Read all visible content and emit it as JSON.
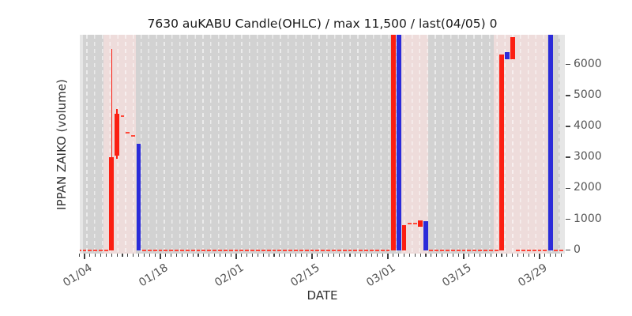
{
  "title_color": "#1a1a1a",
  "axis_color": "#555555",
  "chart_data": {
    "type": "candlestick",
    "title": "7630 auKABU Candle(OHLC) / max 11,500 / last(04/05) 0",
    "xlabel": "DATE",
    "ylabel": "IPPAN ZAIKO (volume)",
    "y_ticks": [
      0,
      1000,
      2000,
      3000,
      4000,
      5000,
      6000
    ],
    "x_tick_dates": [
      "01/04",
      "01/18",
      "02/01",
      "02/15",
      "03/01",
      "03/15",
      "03/29"
    ],
    "x_start": "01/03",
    "x_end": "04/02",
    "ylim": [
      -110,
      6955
    ],
    "max_value": 11500,
    "last": {
      "date": "04/05",
      "value": 0
    },
    "up_color": "#fb1f12",
    "down_color": "#2b2bd9",
    "flat_color": "#ff4a3a",
    "zero_line_color": "#ff4438",
    "background": {
      "base": "#e6e6e6",
      "active": "#d2d2d2",
      "highlight": "#eedcdb",
      "active_region": {
        "from": "01/04",
        "to": "04/01"
      },
      "highlight_spans": [
        {
          "from": "01/08",
          "to": "01/13"
        },
        {
          "from": "03/04",
          "to": "03/08"
        },
        {
          "from": "03/21",
          "to": "03/30"
        }
      ]
    },
    "candles": [
      {
        "date": "01/09",
        "open": 0,
        "high": 6500,
        "low": 0,
        "close": 3000,
        "dir": "up"
      },
      {
        "date": "01/10",
        "open": 3050,
        "high": 4570,
        "low": 2950,
        "close": 4400,
        "dir": "up"
      },
      {
        "date": "01/11",
        "open": 4330,
        "high": 4330,
        "low": 4330,
        "close": 4330,
        "dir": "flat"
      },
      {
        "date": "01/12",
        "open": 3800,
        "high": 3800,
        "low": 3800,
        "close": 3800,
        "dir": "flat"
      },
      {
        "date": "01/13",
        "open": 3700,
        "high": 3700,
        "low": 3700,
        "close": 3700,
        "dir": "flat"
      },
      {
        "date": "01/14",
        "open": 3430,
        "high": 3430,
        "low": 0,
        "close": 0,
        "dir": "down"
      },
      {
        "date": "03/02",
        "open": 0,
        "high": 11500,
        "low": 0,
        "close": 11500,
        "dir": "up"
      },
      {
        "date": "03/03",
        "open": 11500,
        "high": 11500,
        "low": 0,
        "close": 0,
        "dir": "down"
      },
      {
        "date": "03/04",
        "open": 0,
        "high": 820,
        "low": 0,
        "close": 820,
        "dir": "up"
      },
      {
        "date": "03/05",
        "open": 860,
        "high": 860,
        "low": 860,
        "close": 860,
        "dir": "flat"
      },
      {
        "date": "03/06",
        "open": 860,
        "high": 860,
        "low": 860,
        "close": 860,
        "dir": "flat"
      },
      {
        "date": "03/07",
        "open": 770,
        "high": 960,
        "low": 770,
        "close": 960,
        "dir": "up"
      },
      {
        "date": "03/08",
        "open": 945,
        "high": 945,
        "low": 0,
        "close": 0,
        "dir": "down"
      },
      {
        "date": "03/22",
        "open": 0,
        "high": 6320,
        "low": 0,
        "close": 6320,
        "dir": "up"
      },
      {
        "date": "03/23",
        "open": 6390,
        "high": 6390,
        "low": 6180,
        "close": 6180,
        "dir": "down"
      },
      {
        "date": "03/24",
        "open": 6180,
        "high": 6880,
        "low": 6180,
        "close": 6880,
        "dir": "up"
      },
      {
        "date": "03/31",
        "open": 11500,
        "high": 11500,
        "low": 0,
        "close": 0,
        "dir": "down"
      }
    ]
  }
}
